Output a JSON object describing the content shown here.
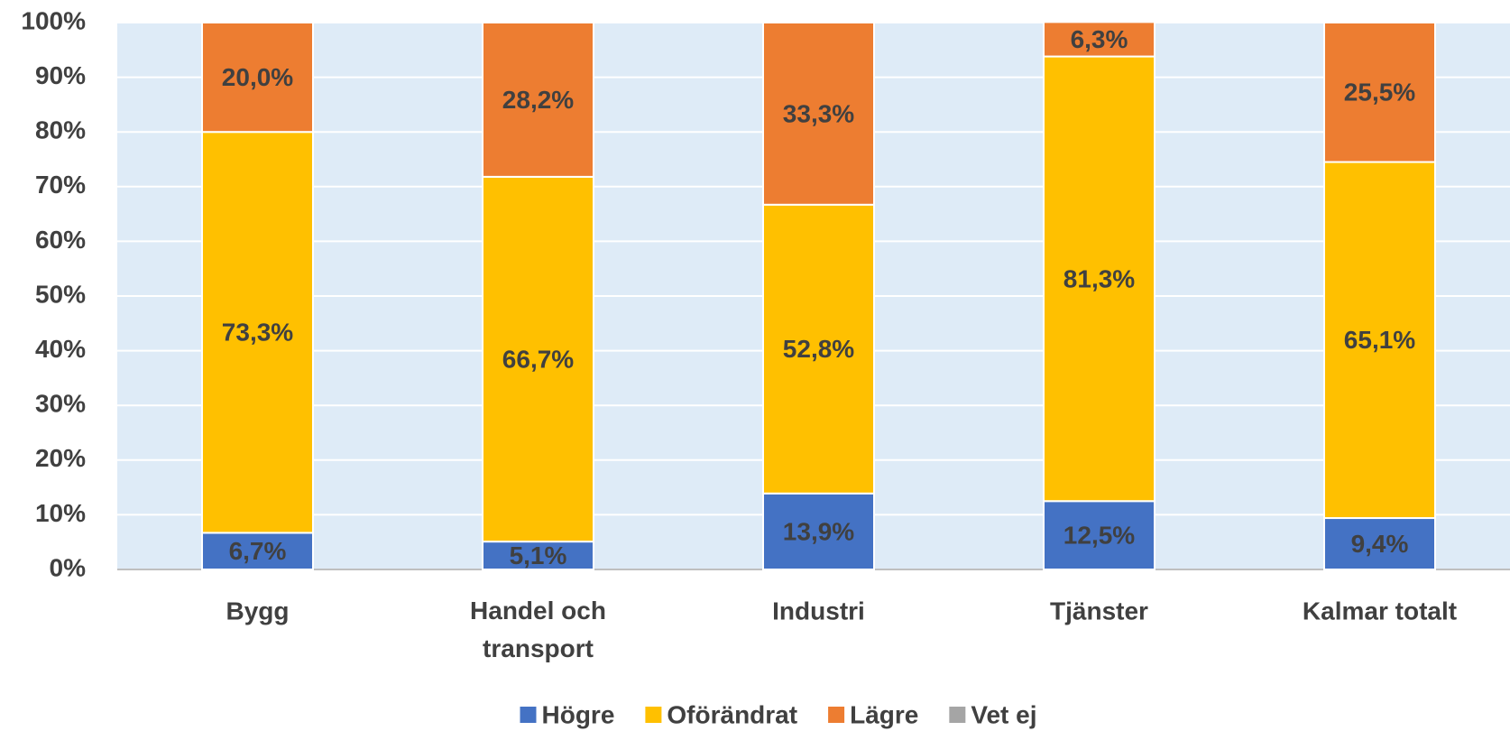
{
  "chart_data": {
    "type": "stacked_bar",
    "categories": [
      "Bygg",
      "Handel och transport",
      "Industri",
      "Tjänster",
      "Kalmar totalt"
    ],
    "series": [
      {
        "name": "Högre",
        "color": "#4472c4",
        "values": [
          6.7,
          5.1,
          13.9,
          12.5,
          9.4
        ],
        "value_labels": [
          "6,7%",
          "5,1%",
          "13,9%",
          "12,5%",
          "9,4%"
        ]
      },
      {
        "name": "Oförändrat",
        "color": "#ffc000",
        "values": [
          73.3,
          66.7,
          52.8,
          81.3,
          65.1
        ],
        "value_labels": [
          "73,3%",
          "66,7%",
          "52,8%",
          "81,3%",
          "65,1%"
        ]
      },
      {
        "name": "Lägre",
        "color": "#ed7d31",
        "values": [
          20.0,
          28.2,
          33.3,
          6.3,
          25.5
        ],
        "value_labels": [
          "20,0%",
          "28,2%",
          "33,3%",
          "6,3%",
          "25,5%"
        ]
      },
      {
        "name": "Vet ej",
        "color": "#a5a5a5",
        "values": [
          0,
          0,
          0,
          0,
          0
        ]
      }
    ],
    "ylim": [
      0,
      100
    ],
    "yticks": [
      {
        "value": 0,
        "label": "0%"
      },
      {
        "value": 10,
        "label": "10%"
      },
      {
        "value": 20,
        "label": "20%"
      },
      {
        "value": 30,
        "label": "30%"
      },
      {
        "value": 40,
        "label": "40%"
      },
      {
        "value": 50,
        "label": "50%"
      },
      {
        "value": 60,
        "label": "60%"
      },
      {
        "value": 70,
        "label": "70%"
      },
      {
        "value": 80,
        "label": "80%"
      },
      {
        "value": 90,
        "label": "90%"
      },
      {
        "value": 100,
        "label": "100%"
      }
    ],
    "grid": true,
    "legend": "bottom"
  }
}
